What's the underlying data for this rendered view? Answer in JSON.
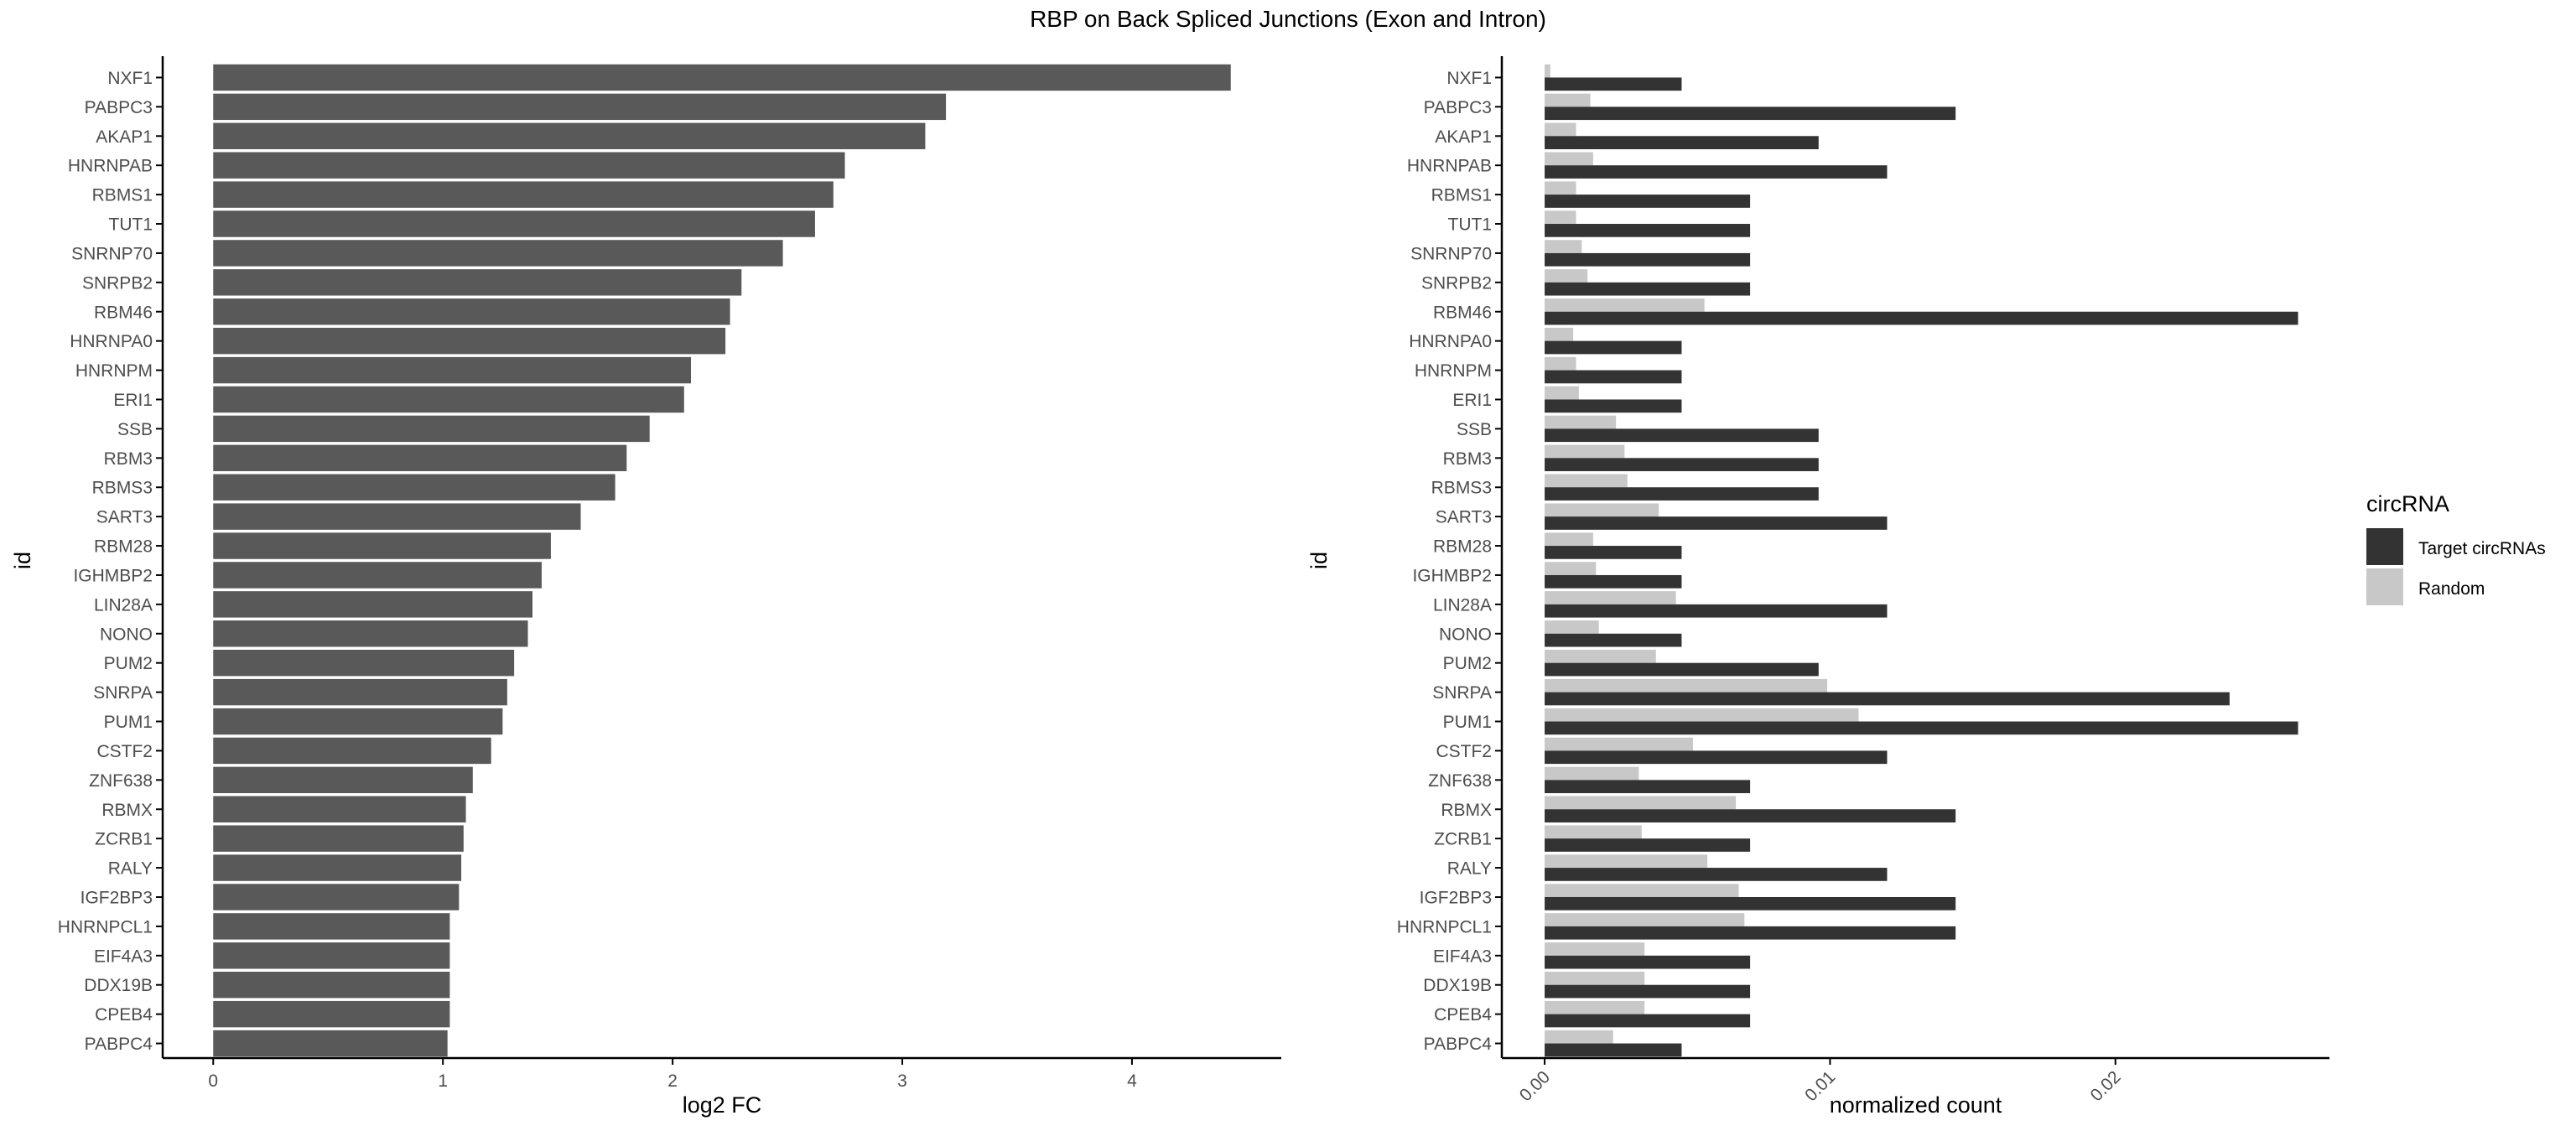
{
  "title": "RBP on Back Spliced Junctions (Exon and Intron)",
  "colors": {
    "bar": "#595959",
    "target": "#333333",
    "random": "#c8c8c8",
    "axis": "#000000",
    "text": "#4d4d4d"
  },
  "chart_data": [
    {
      "type": "bar",
      "orientation": "horizontal",
      "xlabel": "log2 FC",
      "ylabel": "id",
      "xlim": [
        -0.22,
        4.65
      ],
      "xticks": [
        "0",
        "1",
        "2",
        "3",
        "4"
      ],
      "grid": false,
      "categories": [
        "NXF1",
        "PABPC3",
        "AKAP1",
        "HNRNPAB",
        "RBMS1",
        "TUT1",
        "SNRNP70",
        "SNRPB2",
        "RBM46",
        "HNRNPA0",
        "HNRNPM",
        "ERI1",
        "SSB",
        "RBM3",
        "RBMS3",
        "SART3",
        "RBM28",
        "IGHMBP2",
        "LIN28A",
        "NONO",
        "PUM2",
        "SNRPA",
        "PUM1",
        "CSTF2",
        "ZNF638",
        "RBMX",
        "ZCRB1",
        "RALY",
        "IGF2BP3",
        "HNRNPCL1",
        "EIF4A3",
        "DDX19B",
        "CPEB4",
        "PABPC4"
      ],
      "values": [
        4.43,
        3.19,
        3.1,
        2.75,
        2.7,
        2.62,
        2.48,
        2.3,
        2.25,
        2.23,
        2.08,
        2.05,
        1.9,
        1.8,
        1.75,
        1.6,
        1.47,
        1.43,
        1.39,
        1.37,
        1.31,
        1.28,
        1.26,
        1.21,
        1.13,
        1.1,
        1.09,
        1.08,
        1.07,
        1.03,
        1.03,
        1.03,
        1.03,
        1.02
      ]
    },
    {
      "type": "bar",
      "orientation": "horizontal",
      "grouped": true,
      "xlabel": "normalized count",
      "ylabel": "id",
      "xlim": [
        -0.0015,
        0.0275
      ],
      "xticks": [
        "0.00",
        "0.01",
        "0.02"
      ],
      "grid": false,
      "legend_position": "right",
      "legend_title": "circRNA",
      "categories": [
        "NXF1",
        "PABPC3",
        "AKAP1",
        "HNRNPAB",
        "RBMS1",
        "TUT1",
        "SNRNP70",
        "SNRPB2",
        "RBM46",
        "HNRNPA0",
        "HNRNPM",
        "ERI1",
        "SSB",
        "RBM3",
        "RBMS3",
        "SART3",
        "RBM28",
        "IGHMBP2",
        "LIN28A",
        "NONO",
        "PUM2",
        "SNRPA",
        "PUM1",
        "CSTF2",
        "ZNF638",
        "RBMX",
        "ZCRB1",
        "RALY",
        "IGF2BP3",
        "HNRNPCL1",
        "EIF4A3",
        "DDX19B",
        "CPEB4",
        "PABPC4"
      ],
      "series": [
        {
          "name": "Target circRNAs",
          "values": [
            0.0048,
            0.0144,
            0.0096,
            0.012,
            0.0072,
            0.0072,
            0.0072,
            0.0072,
            0.0264,
            0.0048,
            0.0048,
            0.0048,
            0.0096,
            0.0096,
            0.0096,
            0.012,
            0.0048,
            0.0048,
            0.012,
            0.0048,
            0.0096,
            0.024,
            0.0264,
            0.012,
            0.0072,
            0.0144,
            0.0072,
            0.012,
            0.0144,
            0.0144,
            0.0072,
            0.0072,
            0.0072,
            0.0048
          ]
        },
        {
          "name": "Random",
          "values": [
            0.0002,
            0.0016,
            0.0011,
            0.0017,
            0.0011,
            0.0011,
            0.0013,
            0.0015,
            0.0056,
            0.001,
            0.0011,
            0.0012,
            0.0025,
            0.0028,
            0.0029,
            0.004,
            0.0017,
            0.0018,
            0.0046,
            0.0019,
            0.0039,
            0.0099,
            0.011,
            0.0052,
            0.0033,
            0.0067,
            0.0034,
            0.0057,
            0.0068,
            0.007,
            0.0035,
            0.0035,
            0.0035,
            0.0024
          ]
        }
      ]
    }
  ]
}
